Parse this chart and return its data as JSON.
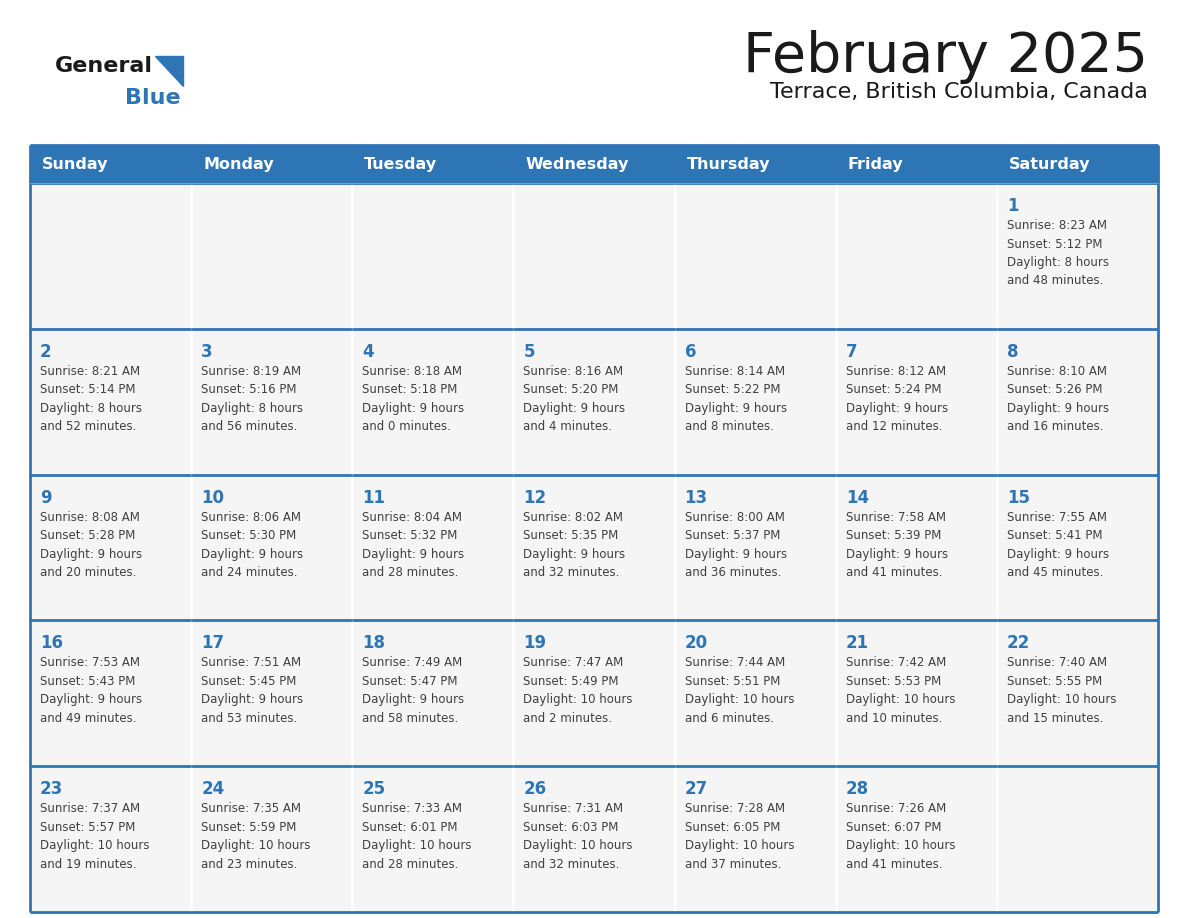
{
  "title": "February 2025",
  "subtitle": "Terrace, British Columbia, Canada",
  "days_of_week": [
    "Sunday",
    "Monday",
    "Tuesday",
    "Wednesday",
    "Thursday",
    "Friday",
    "Saturday"
  ],
  "header_bg": "#2E75B6",
  "header_text": "#FFFFFF",
  "cell_bg": "#F5F5F5",
  "border_color": "#2E75B6",
  "title_color": "#1a1a1a",
  "subtitle_color": "#1a1a1a",
  "day_num_color": "#2E75B6",
  "cell_text_color": "#404040",
  "logo_general_color": "#1a1a1a",
  "logo_blue_color": "#2E75B6",
  "calendar_data": [
    [
      {
        "day": null,
        "info": ""
      },
      {
        "day": null,
        "info": ""
      },
      {
        "day": null,
        "info": ""
      },
      {
        "day": null,
        "info": ""
      },
      {
        "day": null,
        "info": ""
      },
      {
        "day": null,
        "info": ""
      },
      {
        "day": 1,
        "info": "Sunrise: 8:23 AM\nSunset: 5:12 PM\nDaylight: 8 hours\nand 48 minutes."
      }
    ],
    [
      {
        "day": 2,
        "info": "Sunrise: 8:21 AM\nSunset: 5:14 PM\nDaylight: 8 hours\nand 52 minutes."
      },
      {
        "day": 3,
        "info": "Sunrise: 8:19 AM\nSunset: 5:16 PM\nDaylight: 8 hours\nand 56 minutes."
      },
      {
        "day": 4,
        "info": "Sunrise: 8:18 AM\nSunset: 5:18 PM\nDaylight: 9 hours\nand 0 minutes."
      },
      {
        "day": 5,
        "info": "Sunrise: 8:16 AM\nSunset: 5:20 PM\nDaylight: 9 hours\nand 4 minutes."
      },
      {
        "day": 6,
        "info": "Sunrise: 8:14 AM\nSunset: 5:22 PM\nDaylight: 9 hours\nand 8 minutes."
      },
      {
        "day": 7,
        "info": "Sunrise: 8:12 AM\nSunset: 5:24 PM\nDaylight: 9 hours\nand 12 minutes."
      },
      {
        "day": 8,
        "info": "Sunrise: 8:10 AM\nSunset: 5:26 PM\nDaylight: 9 hours\nand 16 minutes."
      }
    ],
    [
      {
        "day": 9,
        "info": "Sunrise: 8:08 AM\nSunset: 5:28 PM\nDaylight: 9 hours\nand 20 minutes."
      },
      {
        "day": 10,
        "info": "Sunrise: 8:06 AM\nSunset: 5:30 PM\nDaylight: 9 hours\nand 24 minutes."
      },
      {
        "day": 11,
        "info": "Sunrise: 8:04 AM\nSunset: 5:32 PM\nDaylight: 9 hours\nand 28 minutes."
      },
      {
        "day": 12,
        "info": "Sunrise: 8:02 AM\nSunset: 5:35 PM\nDaylight: 9 hours\nand 32 minutes."
      },
      {
        "day": 13,
        "info": "Sunrise: 8:00 AM\nSunset: 5:37 PM\nDaylight: 9 hours\nand 36 minutes."
      },
      {
        "day": 14,
        "info": "Sunrise: 7:58 AM\nSunset: 5:39 PM\nDaylight: 9 hours\nand 41 minutes."
      },
      {
        "day": 15,
        "info": "Sunrise: 7:55 AM\nSunset: 5:41 PM\nDaylight: 9 hours\nand 45 minutes."
      }
    ],
    [
      {
        "day": 16,
        "info": "Sunrise: 7:53 AM\nSunset: 5:43 PM\nDaylight: 9 hours\nand 49 minutes."
      },
      {
        "day": 17,
        "info": "Sunrise: 7:51 AM\nSunset: 5:45 PM\nDaylight: 9 hours\nand 53 minutes."
      },
      {
        "day": 18,
        "info": "Sunrise: 7:49 AM\nSunset: 5:47 PM\nDaylight: 9 hours\nand 58 minutes."
      },
      {
        "day": 19,
        "info": "Sunrise: 7:47 AM\nSunset: 5:49 PM\nDaylight: 10 hours\nand 2 minutes."
      },
      {
        "day": 20,
        "info": "Sunrise: 7:44 AM\nSunset: 5:51 PM\nDaylight: 10 hours\nand 6 minutes."
      },
      {
        "day": 21,
        "info": "Sunrise: 7:42 AM\nSunset: 5:53 PM\nDaylight: 10 hours\nand 10 minutes."
      },
      {
        "day": 22,
        "info": "Sunrise: 7:40 AM\nSunset: 5:55 PM\nDaylight: 10 hours\nand 15 minutes."
      }
    ],
    [
      {
        "day": 23,
        "info": "Sunrise: 7:37 AM\nSunset: 5:57 PM\nDaylight: 10 hours\nand 19 minutes."
      },
      {
        "day": 24,
        "info": "Sunrise: 7:35 AM\nSunset: 5:59 PM\nDaylight: 10 hours\nand 23 minutes."
      },
      {
        "day": 25,
        "info": "Sunrise: 7:33 AM\nSunset: 6:01 PM\nDaylight: 10 hours\nand 28 minutes."
      },
      {
        "day": 26,
        "info": "Sunrise: 7:31 AM\nSunset: 6:03 PM\nDaylight: 10 hours\nand 32 minutes."
      },
      {
        "day": 27,
        "info": "Sunrise: 7:28 AM\nSunset: 6:05 PM\nDaylight: 10 hours\nand 37 minutes."
      },
      {
        "day": 28,
        "info": "Sunrise: 7:26 AM\nSunset: 6:07 PM\nDaylight: 10 hours\nand 41 minutes."
      },
      {
        "day": null,
        "info": ""
      }
    ]
  ]
}
